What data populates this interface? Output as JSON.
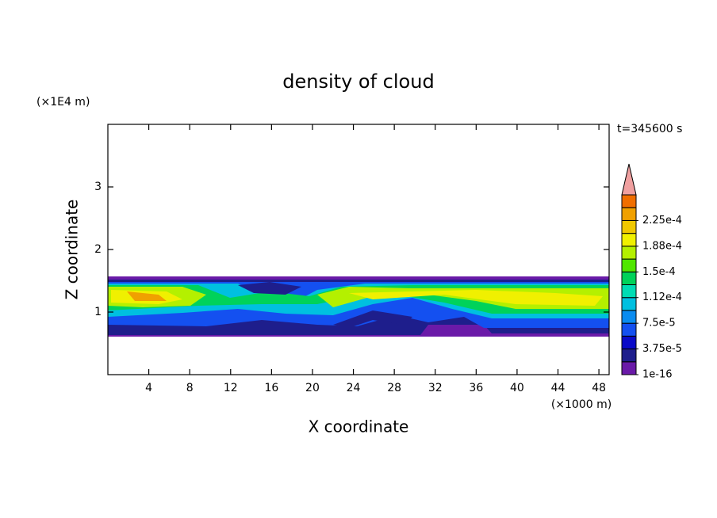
{
  "chart_data": {
    "type": "contour",
    "title": "density of cloud",
    "x_label": "X coordinate",
    "y_label": "Z coordinate",
    "x_unit": "(×1000 m)",
    "y_unit": "(×1E4 m)",
    "annotation": "t=345600 s",
    "xlim": [
      0,
      49
    ],
    "xticks": [
      4,
      8,
      12,
      16,
      20,
      24,
      28,
      32,
      36,
      40,
      44,
      48
    ],
    "ylim": [
      0,
      4
    ],
    "yticks": [
      1,
      2,
      3
    ],
    "colorbar": {
      "lim": [
        1e-16,
        0.0002625
      ],
      "colors": [
        "#6a1aa8",
        "#1e1e8c",
        "#0a0ac8",
        "#1450f0",
        "#0a8cf0",
        "#00c0e0",
        "#00dcb4",
        "#00d25a",
        "#50e600",
        "#b4f000",
        "#f0f000",
        "#f0c800",
        "#f0a000",
        "#f06e00"
      ],
      "over_color": "#f0a0a0",
      "ticks": [
        {
          "value": 1e-16,
          "label": "1e-16"
        },
        {
          "value": 3.75e-05,
          "label": "3.75e-5"
        },
        {
          "value": 7.5e-05,
          "label": "7.5e-5"
        },
        {
          "value": 0.0001125,
          "label": "1.12e-4"
        },
        {
          "value": 0.00015,
          "label": "1.5e-4"
        },
        {
          "value": 0.0001875,
          "label": "1.88e-4"
        },
        {
          "value": 0.000225,
          "label": "2.25e-4"
        }
      ]
    }
  }
}
